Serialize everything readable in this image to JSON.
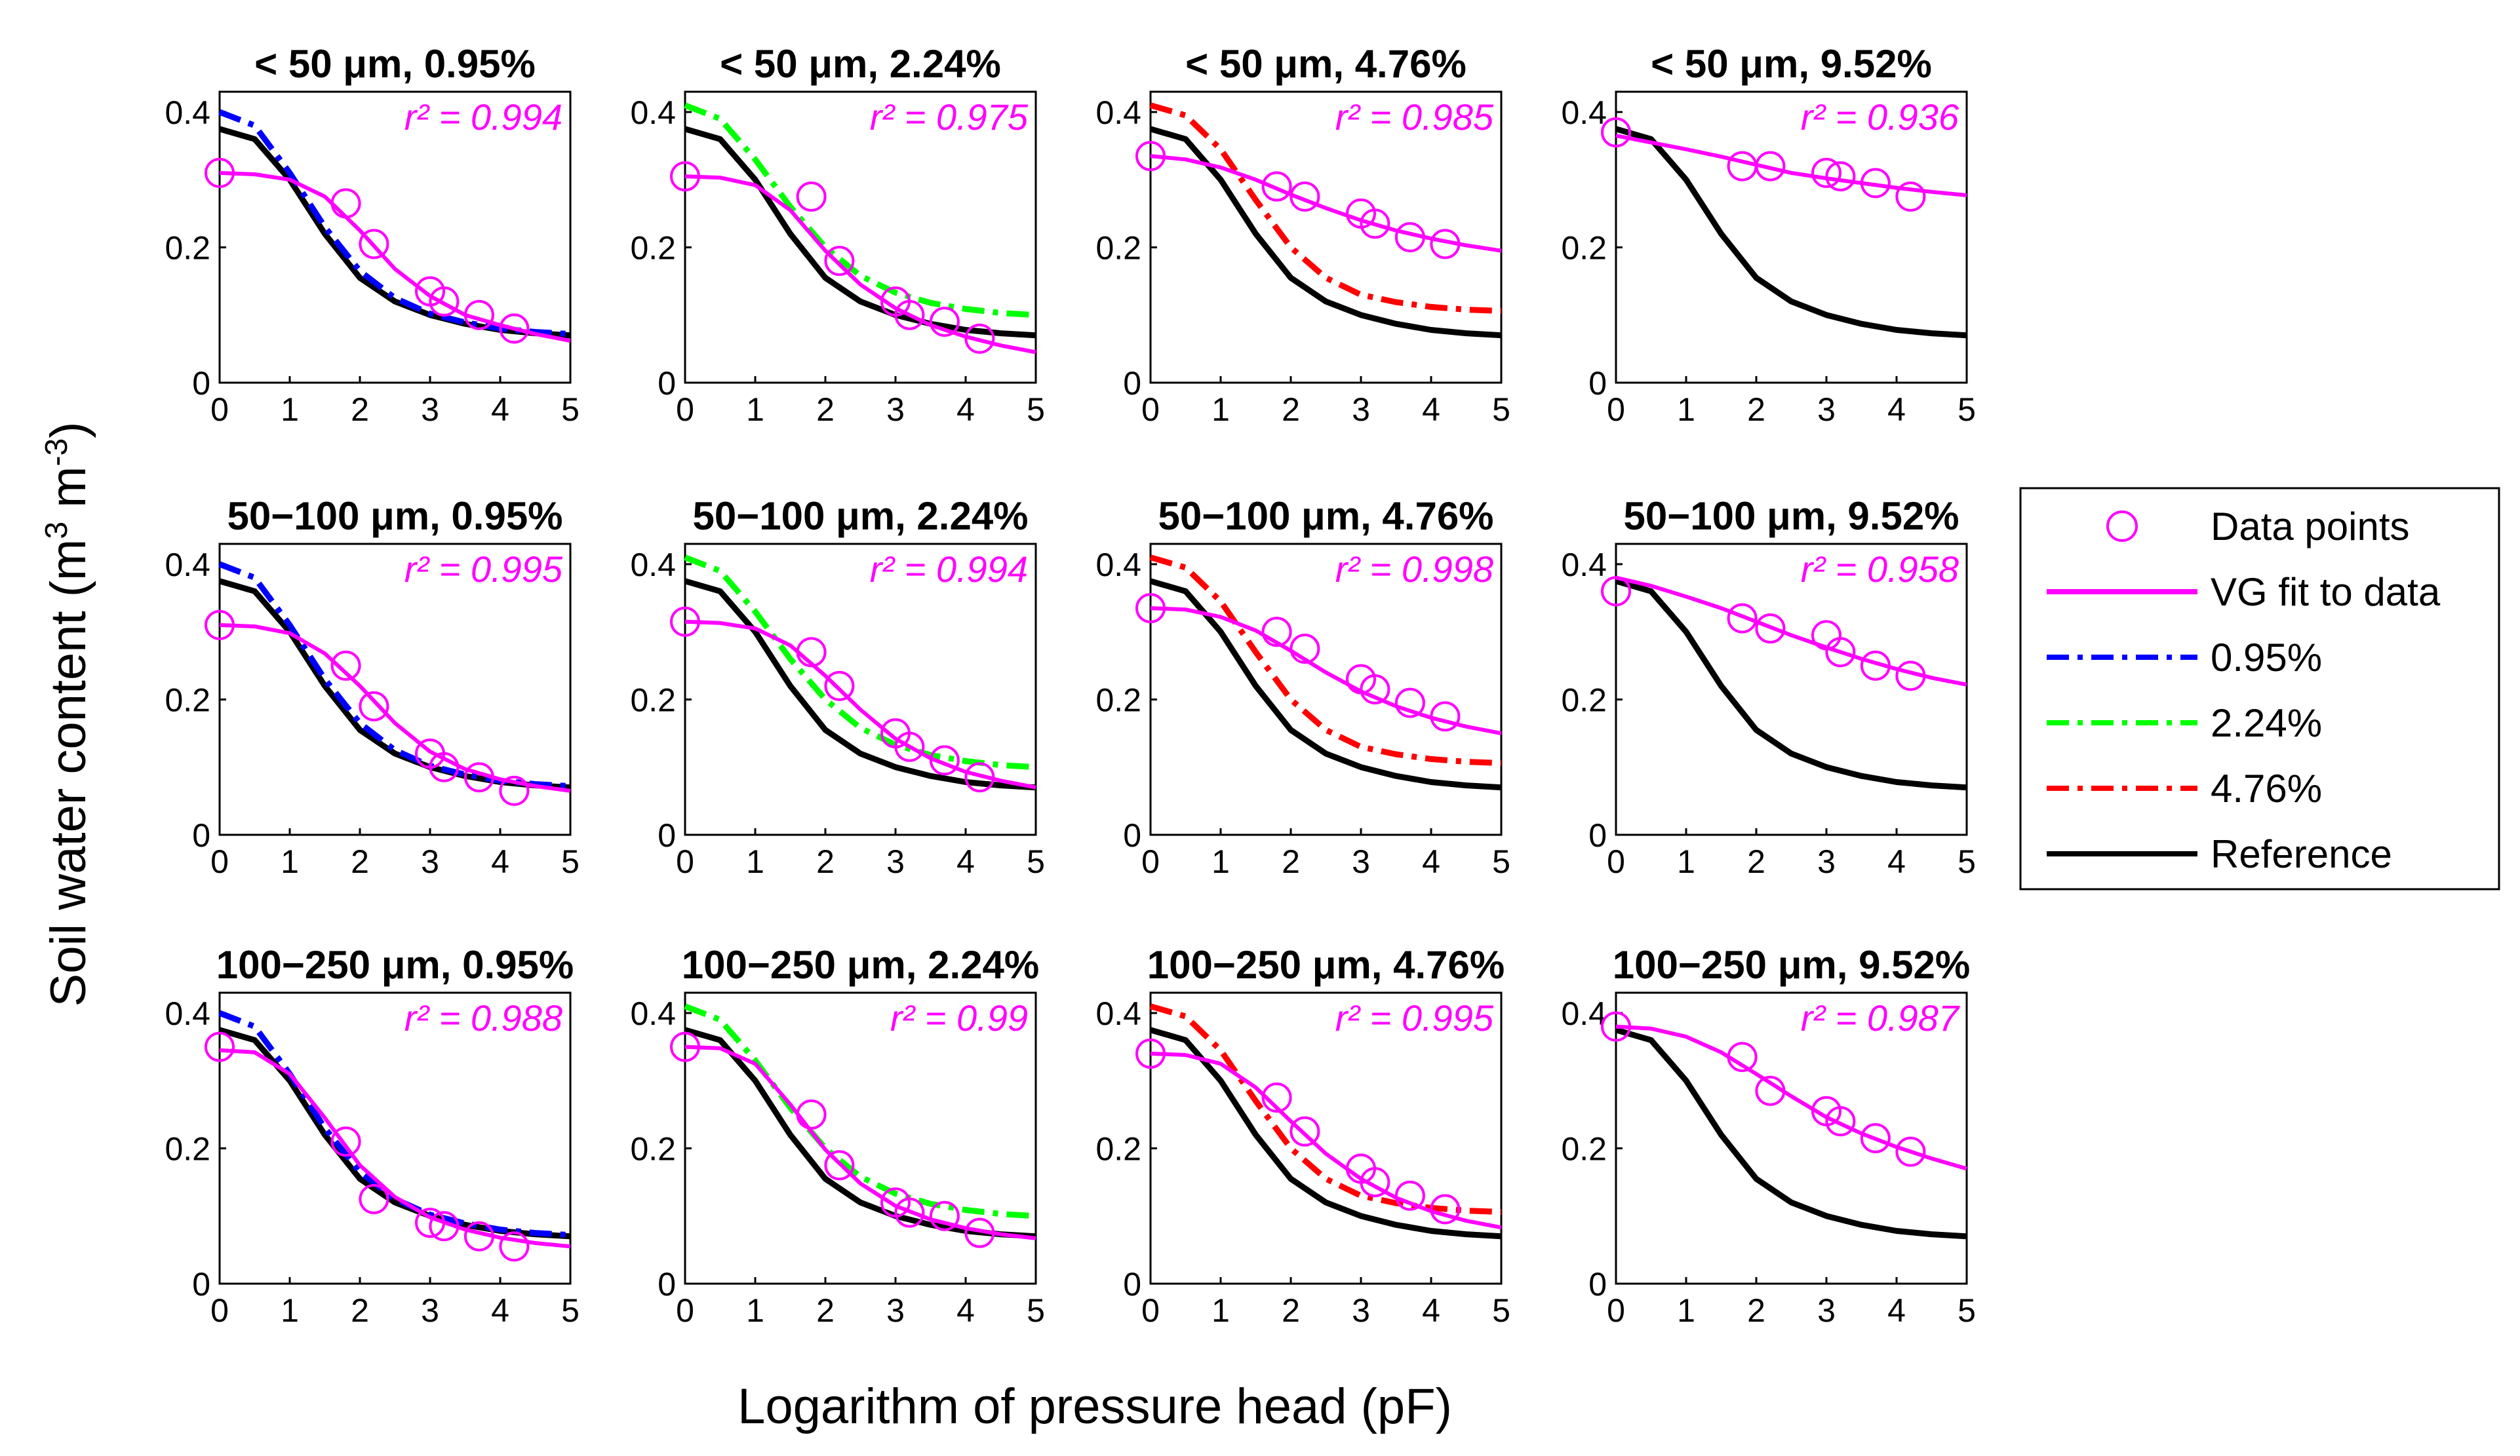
{
  "chart_data": {
    "type": "line",
    "grid": false,
    "xlabel": "Logarithm of pressure head (pF)",
    "ylabel_parts": {
      "main": "Soil water content (m",
      "exp1": "3",
      "mid": " m",
      "exp2": "-3",
      "end": ")"
    },
    "xlim": [
      0,
      5
    ],
    "ylim": [
      0,
      0.43
    ],
    "xticks": [
      "0",
      "1",
      "2",
      "3",
      "4",
      "5"
    ],
    "yticks": [
      {
        "value": 0,
        "label": "0"
      },
      {
        "value": 0.2,
        "label": "0.2"
      },
      {
        "value": 0.4,
        "label": "0.4"
      }
    ],
    "legend": {
      "placement": "right",
      "entries": [
        {
          "label": "Data points",
          "style": "marker",
          "color": "#ff00ff"
        },
        {
          "label": "VG fit to data",
          "style": "solid",
          "color": "#ff00ff"
        },
        {
          "label": "0.95%",
          "style": "dashdot",
          "color": "#0000ff"
        },
        {
          "label": "2.24%",
          "style": "dashdot",
          "color": "#00ff00"
        },
        {
          "label": "4.76%",
          "style": "dashdot",
          "color": "#ff0000"
        },
        {
          "label": "Reference",
          "style": "solid",
          "color": "#000000"
        }
      ]
    },
    "curves": {
      "reference": {
        "color": "#000000",
        "points": [
          [
            0,
            0.375
          ],
          [
            0.5,
            0.36
          ],
          [
            1,
            0.3
          ],
          [
            1.5,
            0.22
          ],
          [
            2,
            0.155
          ],
          [
            2.5,
            0.12
          ],
          [
            3,
            0.1
          ],
          [
            3.5,
            0.087
          ],
          [
            4,
            0.078
          ],
          [
            4.5,
            0.073
          ],
          [
            5,
            0.07
          ]
        ]
      },
      "c095": {
        "color": "#0000ff",
        "points": [
          [
            0,
            0.4
          ],
          [
            0.5,
            0.38
          ],
          [
            1,
            0.31
          ],
          [
            1.5,
            0.23
          ],
          [
            2,
            0.165
          ],
          [
            2.5,
            0.125
          ],
          [
            3,
            0.102
          ],
          [
            3.5,
            0.089
          ],
          [
            4,
            0.08
          ],
          [
            4.5,
            0.075
          ],
          [
            5,
            0.072
          ]
        ]
      },
      "c224": {
        "color": "#00ff00",
        "points": [
          [
            0,
            0.41
          ],
          [
            0.5,
            0.39
          ],
          [
            1,
            0.33
          ],
          [
            1.5,
            0.26
          ],
          [
            2,
            0.2
          ],
          [
            2.5,
            0.158
          ],
          [
            3,
            0.133
          ],
          [
            3.5,
            0.118
          ],
          [
            4,
            0.109
          ],
          [
            4.5,
            0.103
          ],
          [
            5,
            0.1
          ]
        ]
      },
      "c476": {
        "color": "#ff0000",
        "points": [
          [
            0,
            0.41
          ],
          [
            0.5,
            0.395
          ],
          [
            1,
            0.345
          ],
          [
            1.5,
            0.27
          ],
          [
            2,
            0.2
          ],
          [
            2.5,
            0.155
          ],
          [
            3,
            0.13
          ],
          [
            3.5,
            0.119
          ],
          [
            4,
            0.112
          ],
          [
            4.5,
            0.108
          ],
          [
            5,
            0.106
          ]
        ]
      }
    },
    "panels": [
      {
        "title": "< 50 μm, 0.95%",
        "r2": "r² = 0.994",
        "pct": "c095",
        "fit": [
          [
            0,
            0.31
          ],
          [
            0.5,
            0.308
          ],
          [
            1,
            0.3
          ],
          [
            1.5,
            0.275
          ],
          [
            2,
            0.225
          ],
          [
            2.5,
            0.168
          ],
          [
            3,
            0.128
          ],
          [
            3.5,
            0.1
          ],
          [
            4,
            0.085
          ],
          [
            4.5,
            0.072
          ],
          [
            5,
            0.062
          ]
        ],
        "points": [
          [
            0,
            0.31
          ],
          [
            1.8,
            0.265
          ],
          [
            2.2,
            0.205
          ],
          [
            3,
            0.135
          ],
          [
            3.2,
            0.12
          ],
          [
            3.7,
            0.1
          ],
          [
            4.2,
            0.08
          ]
        ]
      },
      {
        "title": "< 50 μm, 2.24%",
        "r2": "r² = 0.975",
        "pct": "c224",
        "fit": [
          [
            0,
            0.305
          ],
          [
            0.5,
            0.303
          ],
          [
            1,
            0.292
          ],
          [
            1.5,
            0.255
          ],
          [
            2,
            0.195
          ],
          [
            2.5,
            0.145
          ],
          [
            3,
            0.11
          ],
          [
            3.5,
            0.085
          ],
          [
            4,
            0.068
          ],
          [
            4.5,
            0.055
          ],
          [
            5,
            0.045
          ]
        ],
        "points": [
          [
            0,
            0.305
          ],
          [
            1.8,
            0.275
          ],
          [
            2.2,
            0.18
          ],
          [
            3,
            0.12
          ],
          [
            3.2,
            0.1
          ],
          [
            3.7,
            0.09
          ],
          [
            4.2,
            0.065
          ]
        ]
      },
      {
        "title": "< 50 μm, 4.76%",
        "r2": "r² = 0.985",
        "pct": "c476",
        "fit": [
          [
            0,
            0.335
          ],
          [
            0.5,
            0.33
          ],
          [
            1,
            0.318
          ],
          [
            1.5,
            0.3
          ],
          [
            2,
            0.278
          ],
          [
            2.5,
            0.258
          ],
          [
            3,
            0.24
          ],
          [
            3.5,
            0.225
          ],
          [
            4,
            0.213
          ],
          [
            4.5,
            0.203
          ],
          [
            5,
            0.195
          ]
        ],
        "points": [
          [
            0,
            0.335
          ],
          [
            1.8,
            0.29
          ],
          [
            2.2,
            0.275
          ],
          [
            3,
            0.25
          ],
          [
            3.2,
            0.235
          ],
          [
            3.7,
            0.215
          ],
          [
            4.2,
            0.205
          ]
        ]
      },
      {
        "title": "< 50 μm, 9.52%",
        "r2": "r² = 0.936",
        "pct": null,
        "fit": [
          [
            0,
            0.365
          ],
          [
            0.5,
            0.355
          ],
          [
            1,
            0.345
          ],
          [
            1.5,
            0.334
          ],
          [
            2,
            0.322
          ],
          [
            2.5,
            0.31
          ],
          [
            3,
            0.302
          ],
          [
            3.5,
            0.295
          ],
          [
            4,
            0.288
          ],
          [
            4.5,
            0.282
          ],
          [
            5,
            0.277
          ]
        ],
        "points": [
          [
            0,
            0.37
          ],
          [
            1.8,
            0.32
          ],
          [
            2.2,
            0.32
          ],
          [
            3,
            0.31
          ],
          [
            3.2,
            0.305
          ],
          [
            3.7,
            0.295
          ],
          [
            4.2,
            0.275
          ]
        ]
      },
      {
        "title": "50−100 μm, 0.95%",
        "r2": "r² = 0.995",
        "pct": "c095",
        "fit": [
          [
            0,
            0.31
          ],
          [
            0.5,
            0.308
          ],
          [
            1,
            0.298
          ],
          [
            1.5,
            0.268
          ],
          [
            2,
            0.22
          ],
          [
            2.5,
            0.165
          ],
          [
            3,
            0.123
          ],
          [
            3.5,
            0.097
          ],
          [
            4,
            0.082
          ],
          [
            4.5,
            0.072
          ],
          [
            5,
            0.065
          ]
        ],
        "points": [
          [
            0,
            0.31
          ],
          [
            1.8,
            0.25
          ],
          [
            2.2,
            0.19
          ],
          [
            3,
            0.12
          ],
          [
            3.2,
            0.1
          ],
          [
            3.7,
            0.085
          ],
          [
            4.2,
            0.065
          ]
        ]
      },
      {
        "title": "50−100 μm, 2.24%",
        "r2": "r² = 0.994",
        "pct": "c224",
        "fit": [
          [
            0,
            0.315
          ],
          [
            0.5,
            0.313
          ],
          [
            1,
            0.305
          ],
          [
            1.5,
            0.28
          ],
          [
            2,
            0.235
          ],
          [
            2.5,
            0.185
          ],
          [
            3,
            0.142
          ],
          [
            3.5,
            0.113
          ],
          [
            4,
            0.093
          ],
          [
            4.5,
            0.08
          ],
          [
            5,
            0.07
          ]
        ],
        "points": [
          [
            0,
            0.315
          ],
          [
            1.8,
            0.27
          ],
          [
            2.2,
            0.22
          ],
          [
            3,
            0.15
          ],
          [
            3.2,
            0.13
          ],
          [
            3.7,
            0.11
          ],
          [
            4.2,
            0.085
          ]
        ]
      },
      {
        "title": "50−100 μm, 4.76%",
        "r2": "r² = 0.998",
        "pct": "c476",
        "fit": [
          [
            0,
            0.335
          ],
          [
            0.5,
            0.333
          ],
          [
            1,
            0.322
          ],
          [
            1.5,
            0.302
          ],
          [
            2,
            0.272
          ],
          [
            2.5,
            0.24
          ],
          [
            3,
            0.212
          ],
          [
            3.5,
            0.19
          ],
          [
            4,
            0.173
          ],
          [
            4.5,
            0.16
          ],
          [
            5,
            0.15
          ]
        ],
        "points": [
          [
            0,
            0.335
          ],
          [
            1.8,
            0.3
          ],
          [
            2.2,
            0.275
          ],
          [
            3,
            0.23
          ],
          [
            3.2,
            0.215
          ],
          [
            3.7,
            0.195
          ],
          [
            4.2,
            0.175
          ]
        ]
      },
      {
        "title": "50−100 μm, 9.52%",
        "r2": "r² = 0.958",
        "pct": null,
        "fit": [
          [
            0,
            0.38
          ],
          [
            0.5,
            0.368
          ],
          [
            1,
            0.352
          ],
          [
            1.5,
            0.335
          ],
          [
            2,
            0.315
          ],
          [
            2.5,
            0.295
          ],
          [
            3,
            0.277
          ],
          [
            3.5,
            0.26
          ],
          [
            4,
            0.245
          ],
          [
            4.5,
            0.232
          ],
          [
            5,
            0.222
          ]
        ],
        "points": [
          [
            0,
            0.36
          ],
          [
            1.8,
            0.32
          ],
          [
            2.2,
            0.305
          ],
          [
            3,
            0.295
          ],
          [
            3.2,
            0.27
          ],
          [
            3.7,
            0.25
          ],
          [
            4.2,
            0.235
          ]
        ]
      },
      {
        "title": "100−250 μm, 0.95%",
        "r2": "r² = 0.988",
        "pct": "c095",
        "fit": [
          [
            0,
            0.345
          ],
          [
            0.5,
            0.342
          ],
          [
            1,
            0.31
          ],
          [
            1.5,
            0.245
          ],
          [
            2,
            0.175
          ],
          [
            2.5,
            0.128
          ],
          [
            3,
            0.098
          ],
          [
            3.5,
            0.08
          ],
          [
            4,
            0.068
          ],
          [
            4.5,
            0.06
          ],
          [
            5,
            0.055
          ]
        ],
        "points": [
          [
            0,
            0.35
          ],
          [
            1.8,
            0.21
          ],
          [
            2.2,
            0.125
          ],
          [
            3,
            0.09
          ],
          [
            3.2,
            0.085
          ],
          [
            3.7,
            0.07
          ],
          [
            4.2,
            0.055
          ]
        ]
      },
      {
        "title": "100−250 μm, 2.24%",
        "r2": "r² = 0.99",
        "pct": "c224",
        "fit": [
          [
            0,
            0.35
          ],
          [
            0.5,
            0.348
          ],
          [
            1,
            0.325
          ],
          [
            1.5,
            0.265
          ],
          [
            2,
            0.198
          ],
          [
            2.5,
            0.148
          ],
          [
            3,
            0.115
          ],
          [
            3.5,
            0.095
          ],
          [
            4,
            0.082
          ],
          [
            4.5,
            0.073
          ],
          [
            5,
            0.067
          ]
        ],
        "points": [
          [
            0,
            0.35
          ],
          [
            1.8,
            0.25
          ],
          [
            2.2,
            0.175
          ],
          [
            3,
            0.12
          ],
          [
            3.2,
            0.105
          ],
          [
            3.7,
            0.1
          ],
          [
            4.2,
            0.075
          ]
        ]
      },
      {
        "title": "100−250 μm, 4.76%",
        "r2": "r² = 0.995",
        "pct": "c476",
        "fit": [
          [
            0,
            0.34
          ],
          [
            0.5,
            0.338
          ],
          [
            1,
            0.325
          ],
          [
            1.5,
            0.29
          ],
          [
            2,
            0.24
          ],
          [
            2.5,
            0.192
          ],
          [
            3,
            0.155
          ],
          [
            3.5,
            0.127
          ],
          [
            4,
            0.107
          ],
          [
            4.5,
            0.093
          ],
          [
            5,
            0.083
          ]
        ],
        "points": [
          [
            0,
            0.34
          ],
          [
            1.8,
            0.275
          ],
          [
            2.2,
            0.225
          ],
          [
            3,
            0.17
          ],
          [
            3.2,
            0.15
          ],
          [
            3.7,
            0.13
          ],
          [
            4.2,
            0.11
          ]
        ]
      },
      {
        "title": "100−250 μm, 9.52%",
        "r2": "r² = 0.987",
        "pct": null,
        "fit": [
          [
            0,
            0.38
          ],
          [
            0.5,
            0.377
          ],
          [
            1,
            0.365
          ],
          [
            1.5,
            0.342
          ],
          [
            2,
            0.31
          ],
          [
            2.5,
            0.277
          ],
          [
            3,
            0.246
          ],
          [
            3.5,
            0.222
          ],
          [
            4,
            0.202
          ],
          [
            4.5,
            0.185
          ],
          [
            5,
            0.17
          ]
        ],
        "points": [
          [
            0,
            0.38
          ],
          [
            1.8,
            0.335
          ],
          [
            2.2,
            0.285
          ],
          [
            3,
            0.255
          ],
          [
            3.2,
            0.24
          ],
          [
            3.7,
            0.215
          ],
          [
            4.2,
            0.195
          ]
        ]
      }
    ]
  }
}
